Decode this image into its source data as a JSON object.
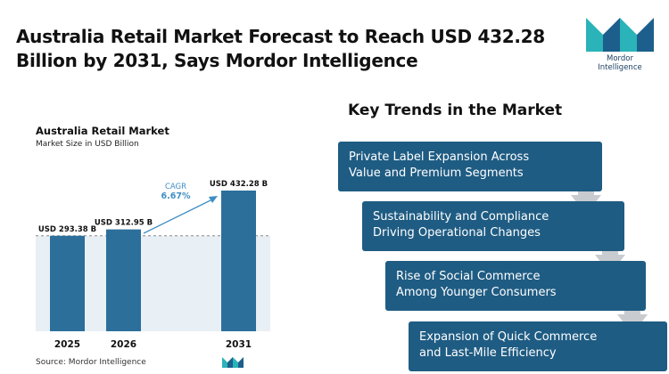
{
  "headline": {
    "line1": "Australia Retail Market Forecast to Reach USD 432.28",
    "line2": "Billion by 2031, Says Mordor Intelligence"
  },
  "logo": {
    "text": "Mordor Intelligence",
    "colors": [
      "#2ab3b8",
      "#1c5f8c"
    ]
  },
  "chart_data": {
    "type": "bar",
    "title": "Australia Retail Market",
    "subtitle": "Market Size in USD Billion",
    "categories": [
      "2025",
      "2026",
      "2031"
    ],
    "values": [
      293.38,
      312.95,
      432.28
    ],
    "data_labels": [
      "USD 293.38 B",
      "USD 312.95 B",
      "USD 432.28 B"
    ],
    "cagr": {
      "label": "CAGR",
      "value": "6.67%"
    },
    "bar_color": "#2c6f9b",
    "grid": false,
    "reference_line": "dashed at 2025 level"
  },
  "source": "Source:  Mordor Intelligence",
  "trends": {
    "title": "Key Trends in the Market",
    "items": [
      {
        "line1": "Private Label Expansion Across",
        "line2": "Value and Premium Segments"
      },
      {
        "line1": "Sustainability and Compliance",
        "line2": "Driving Operational Changes"
      },
      {
        "line1": "Rise of Social Commerce",
        "line2": "Among Younger Consumers"
      },
      {
        "line1": "Expansion of Quick Commerce",
        "line2": "and Last-Mile Efficiency"
      }
    ],
    "box_color": "#1f5c83",
    "arrow_color": "#c8ccd1"
  }
}
